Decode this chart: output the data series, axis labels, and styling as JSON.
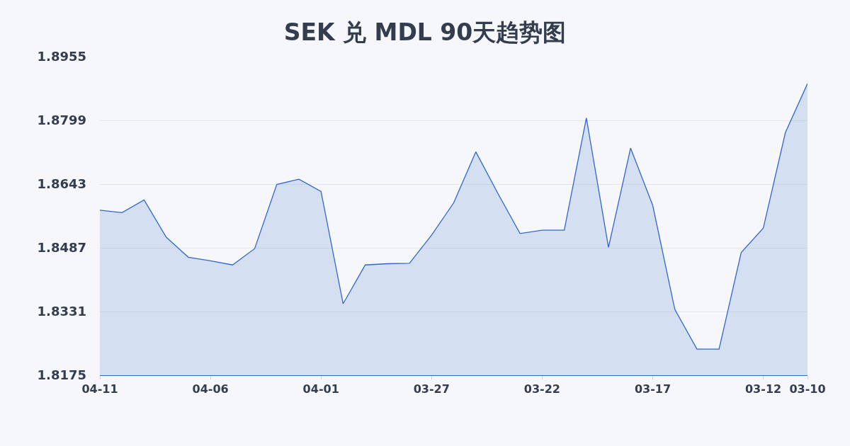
{
  "chart_data": {
    "type": "area",
    "title": "SEK 兑 MDL 90天趋势图",
    "categories": [
      "04-11",
      null,
      null,
      null,
      null,
      "04-06",
      null,
      null,
      null,
      null,
      "04-01",
      null,
      null,
      null,
      null,
      "03-27",
      null,
      null,
      null,
      null,
      "03-22",
      null,
      null,
      null,
      null,
      "03-17",
      null,
      null,
      null,
      null,
      "03-12",
      null,
      "03-10"
    ],
    "values": [
      1.8579,
      1.8573,
      1.8604,
      1.8513,
      1.8464,
      1.8455,
      1.8445,
      1.8485,
      1.8642,
      1.8655,
      1.8625,
      1.835,
      1.8445,
      1.8448,
      1.8449,
      1.8518,
      1.8597,
      1.8722,
      1.862,
      1.8522,
      1.853,
      1.853,
      1.8805,
      1.8488,
      1.8731,
      1.8591,
      1.8336,
      1.8239,
      1.8239,
      1.8475,
      1.8535,
      1.8769,
      1.8889
    ],
    "color": "#3366cc",
    "ylim": [
      1.8175,
      1.8955
    ],
    "yticks": [
      1.8175,
      1.8331,
      1.8487,
      1.8643,
      1.8799,
      1.8955
    ],
    "grid": "y"
  }
}
